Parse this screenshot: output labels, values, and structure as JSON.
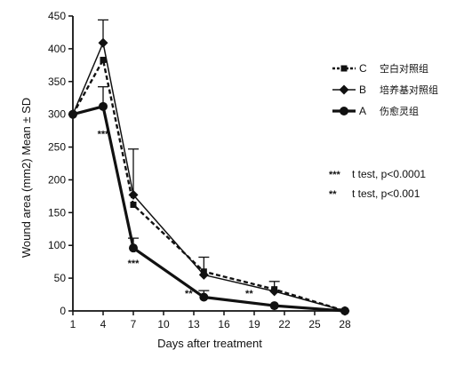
{
  "chart_data": {
    "type": "line",
    "title": "",
    "xlabel": "Days after treatment",
    "ylabel": "Wound area (mm2) Mean ± SD",
    "xlim": [
      1,
      28
    ],
    "ylim": [
      0,
      450
    ],
    "x_ticks": [
      1,
      4,
      7,
      10,
      13,
      16,
      19,
      22,
      25,
      28
    ],
    "y_ticks": [
      0,
      50,
      100,
      150,
      200,
      250,
      300,
      350,
      400,
      450
    ],
    "grid": false,
    "legend_position": "top-right",
    "series": [
      {
        "key": "C",
        "name": "C",
        "legend_label": "空白对照组",
        "style": "dashed",
        "marker": "square",
        "color": "#111111",
        "x": [
          1,
          4,
          7,
          14,
          21,
          28
        ],
        "values": [
          300,
          383,
          162,
          60,
          33,
          0
        ],
        "error": [
          0,
          0,
          0,
          0,
          0,
          0
        ]
      },
      {
        "key": "B",
        "name": "B",
        "legend_label": "培养基对照组",
        "style": "solid",
        "marker": "diamond",
        "color": "#111111",
        "x": [
          1,
          4,
          7,
          14,
          21,
          28
        ],
        "values": [
          300,
          409,
          177,
          55,
          30,
          0
        ],
        "error": [
          0,
          35,
          70,
          27,
          15,
          0
        ]
      },
      {
        "key": "A",
        "name": "A",
        "legend_label": "伤愈灵组",
        "style": "bold",
        "marker": "circle",
        "color": "#111111",
        "x": [
          1,
          4,
          7,
          14,
          21,
          28
        ],
        "values": [
          300,
          312,
          96,
          21,
          8,
          0
        ],
        "error": [
          0,
          30,
          15,
          10,
          0,
          0
        ]
      }
    ],
    "significance": [
      {
        "x": 4,
        "y": 265,
        "label": "***"
      },
      {
        "x": 7,
        "y": 68,
        "label": "***"
      },
      {
        "x": 12.5,
        "y": 22,
        "label": "**"
      },
      {
        "x": 18.5,
        "y": 22,
        "label": "**"
      }
    ],
    "notes": [
      {
        "marker": "***",
        "text": "t test, p<0.0001"
      },
      {
        "marker": "**",
        "text": "t test, p<0.001"
      }
    ]
  }
}
